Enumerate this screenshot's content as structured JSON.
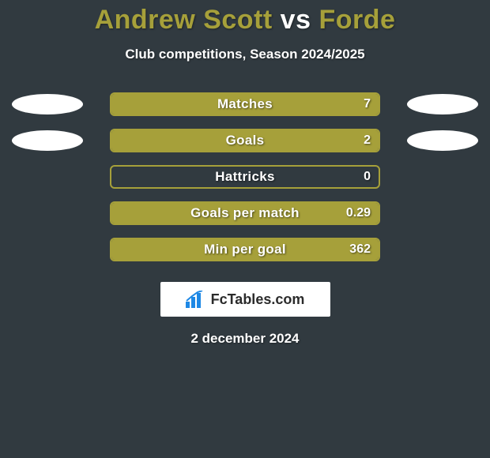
{
  "background_color": "#313a40",
  "title": {
    "player1": "Andrew Scott",
    "vs": "vs",
    "player2": "Forde",
    "player1_color": "#a6a03a",
    "vs_color": "#ffffff",
    "player2_color": "#a6a03a",
    "fontsize": 34
  },
  "subtitle": {
    "text": "Club competitions, Season 2024/2025",
    "color": "#ffffff",
    "fontsize": 17
  },
  "bar_style": {
    "track_width": 342,
    "track_height": 30,
    "border_color": "#a6a03a",
    "border_width": 2,
    "fill_color": "#a6a03a",
    "label_color": "#ffffff",
    "label_fontsize": 17,
    "value_fontsize": 16
  },
  "disc_style": {
    "width": 90,
    "height": 26,
    "color": "#ffffff"
  },
  "stats": [
    {
      "label": "Matches",
      "value": "7",
      "fill_pct": 100,
      "left_disc": true,
      "right_disc": true
    },
    {
      "label": "Goals",
      "value": "2",
      "fill_pct": 100,
      "left_disc": true,
      "right_disc": true
    },
    {
      "label": "Hattricks",
      "value": "0",
      "fill_pct": 0,
      "left_disc": false,
      "right_disc": false
    },
    {
      "label": "Goals per match",
      "value": "0.29",
      "fill_pct": 100,
      "left_disc": false,
      "right_disc": false
    },
    {
      "label": "Min per goal",
      "value": "362",
      "fill_pct": 100,
      "left_disc": false,
      "right_disc": false
    }
  ],
  "logo": {
    "text": "FcTables.com",
    "bg": "#ffffff",
    "fg": "#2b2b2b",
    "bar_color": "#1e88e5"
  },
  "date": {
    "text": "2 december 2024",
    "color": "#ffffff",
    "fontsize": 17
  }
}
